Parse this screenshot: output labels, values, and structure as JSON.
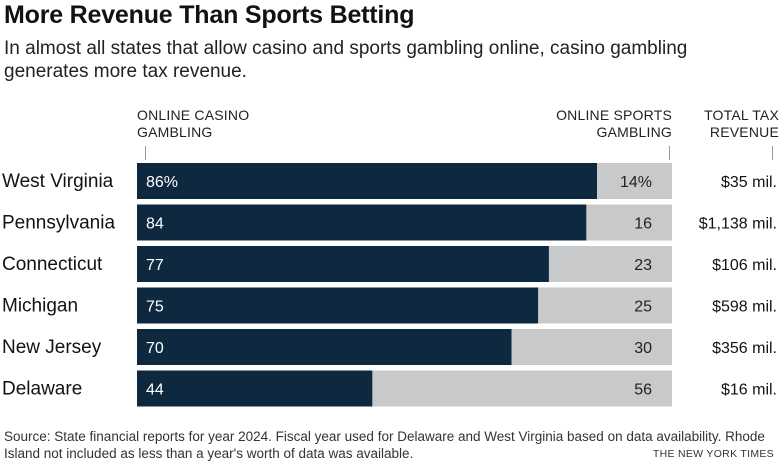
{
  "title": "More Revenue Than Sports Betting",
  "subtitle": "In almost all states that allow casino and sports gambling online, casino gambling generates more tax revenue.",
  "headers": {
    "casino": [
      "ONLINE CASINO",
      "GAMBLING"
    ],
    "sports": [
      "ONLINE SPORTS",
      "GAMBLING"
    ],
    "total": [
      "TOTAL TAX",
      "REVENUE"
    ]
  },
  "colors": {
    "casino": "#0e2840",
    "sports": "#c8c9cb",
    "casino_text": "#ffffff",
    "sports_text": "#222222"
  },
  "chart_data": {
    "type": "bar",
    "stacked": true,
    "orientation": "horizontal",
    "categories": [
      "West Virginia",
      "Pennsylvania",
      "Connecticut",
      "Michigan",
      "New Jersey",
      "Delaware"
    ],
    "series": [
      {
        "name": "Online casino gambling",
        "values": [
          86,
          84,
          77,
          75,
          70,
          44
        ],
        "labels": [
          "86%",
          "84",
          "77",
          "75",
          "70",
          "44"
        ]
      },
      {
        "name": "Online sports gambling",
        "values": [
          14,
          16,
          23,
          25,
          30,
          56
        ],
        "labels": [
          "14%",
          "16",
          "23",
          "25",
          "30",
          "56"
        ]
      }
    ],
    "total_tax_revenue": [
      "$35 mil.",
      "$1,138 mil.",
      "$106 mil.",
      "$598 mil.",
      "$356 mil.",
      "$16 mil."
    ],
    "xlim": [
      0,
      100
    ],
    "grid": false,
    "legend": "none"
  },
  "source": "Source: State financial reports for year 2024. Fiscal year used for Delaware and West Virginia based on data availability. Rhode Island not included as less than a year's worth of data was available.",
  "credit": "THE NEW YORK TIMES"
}
